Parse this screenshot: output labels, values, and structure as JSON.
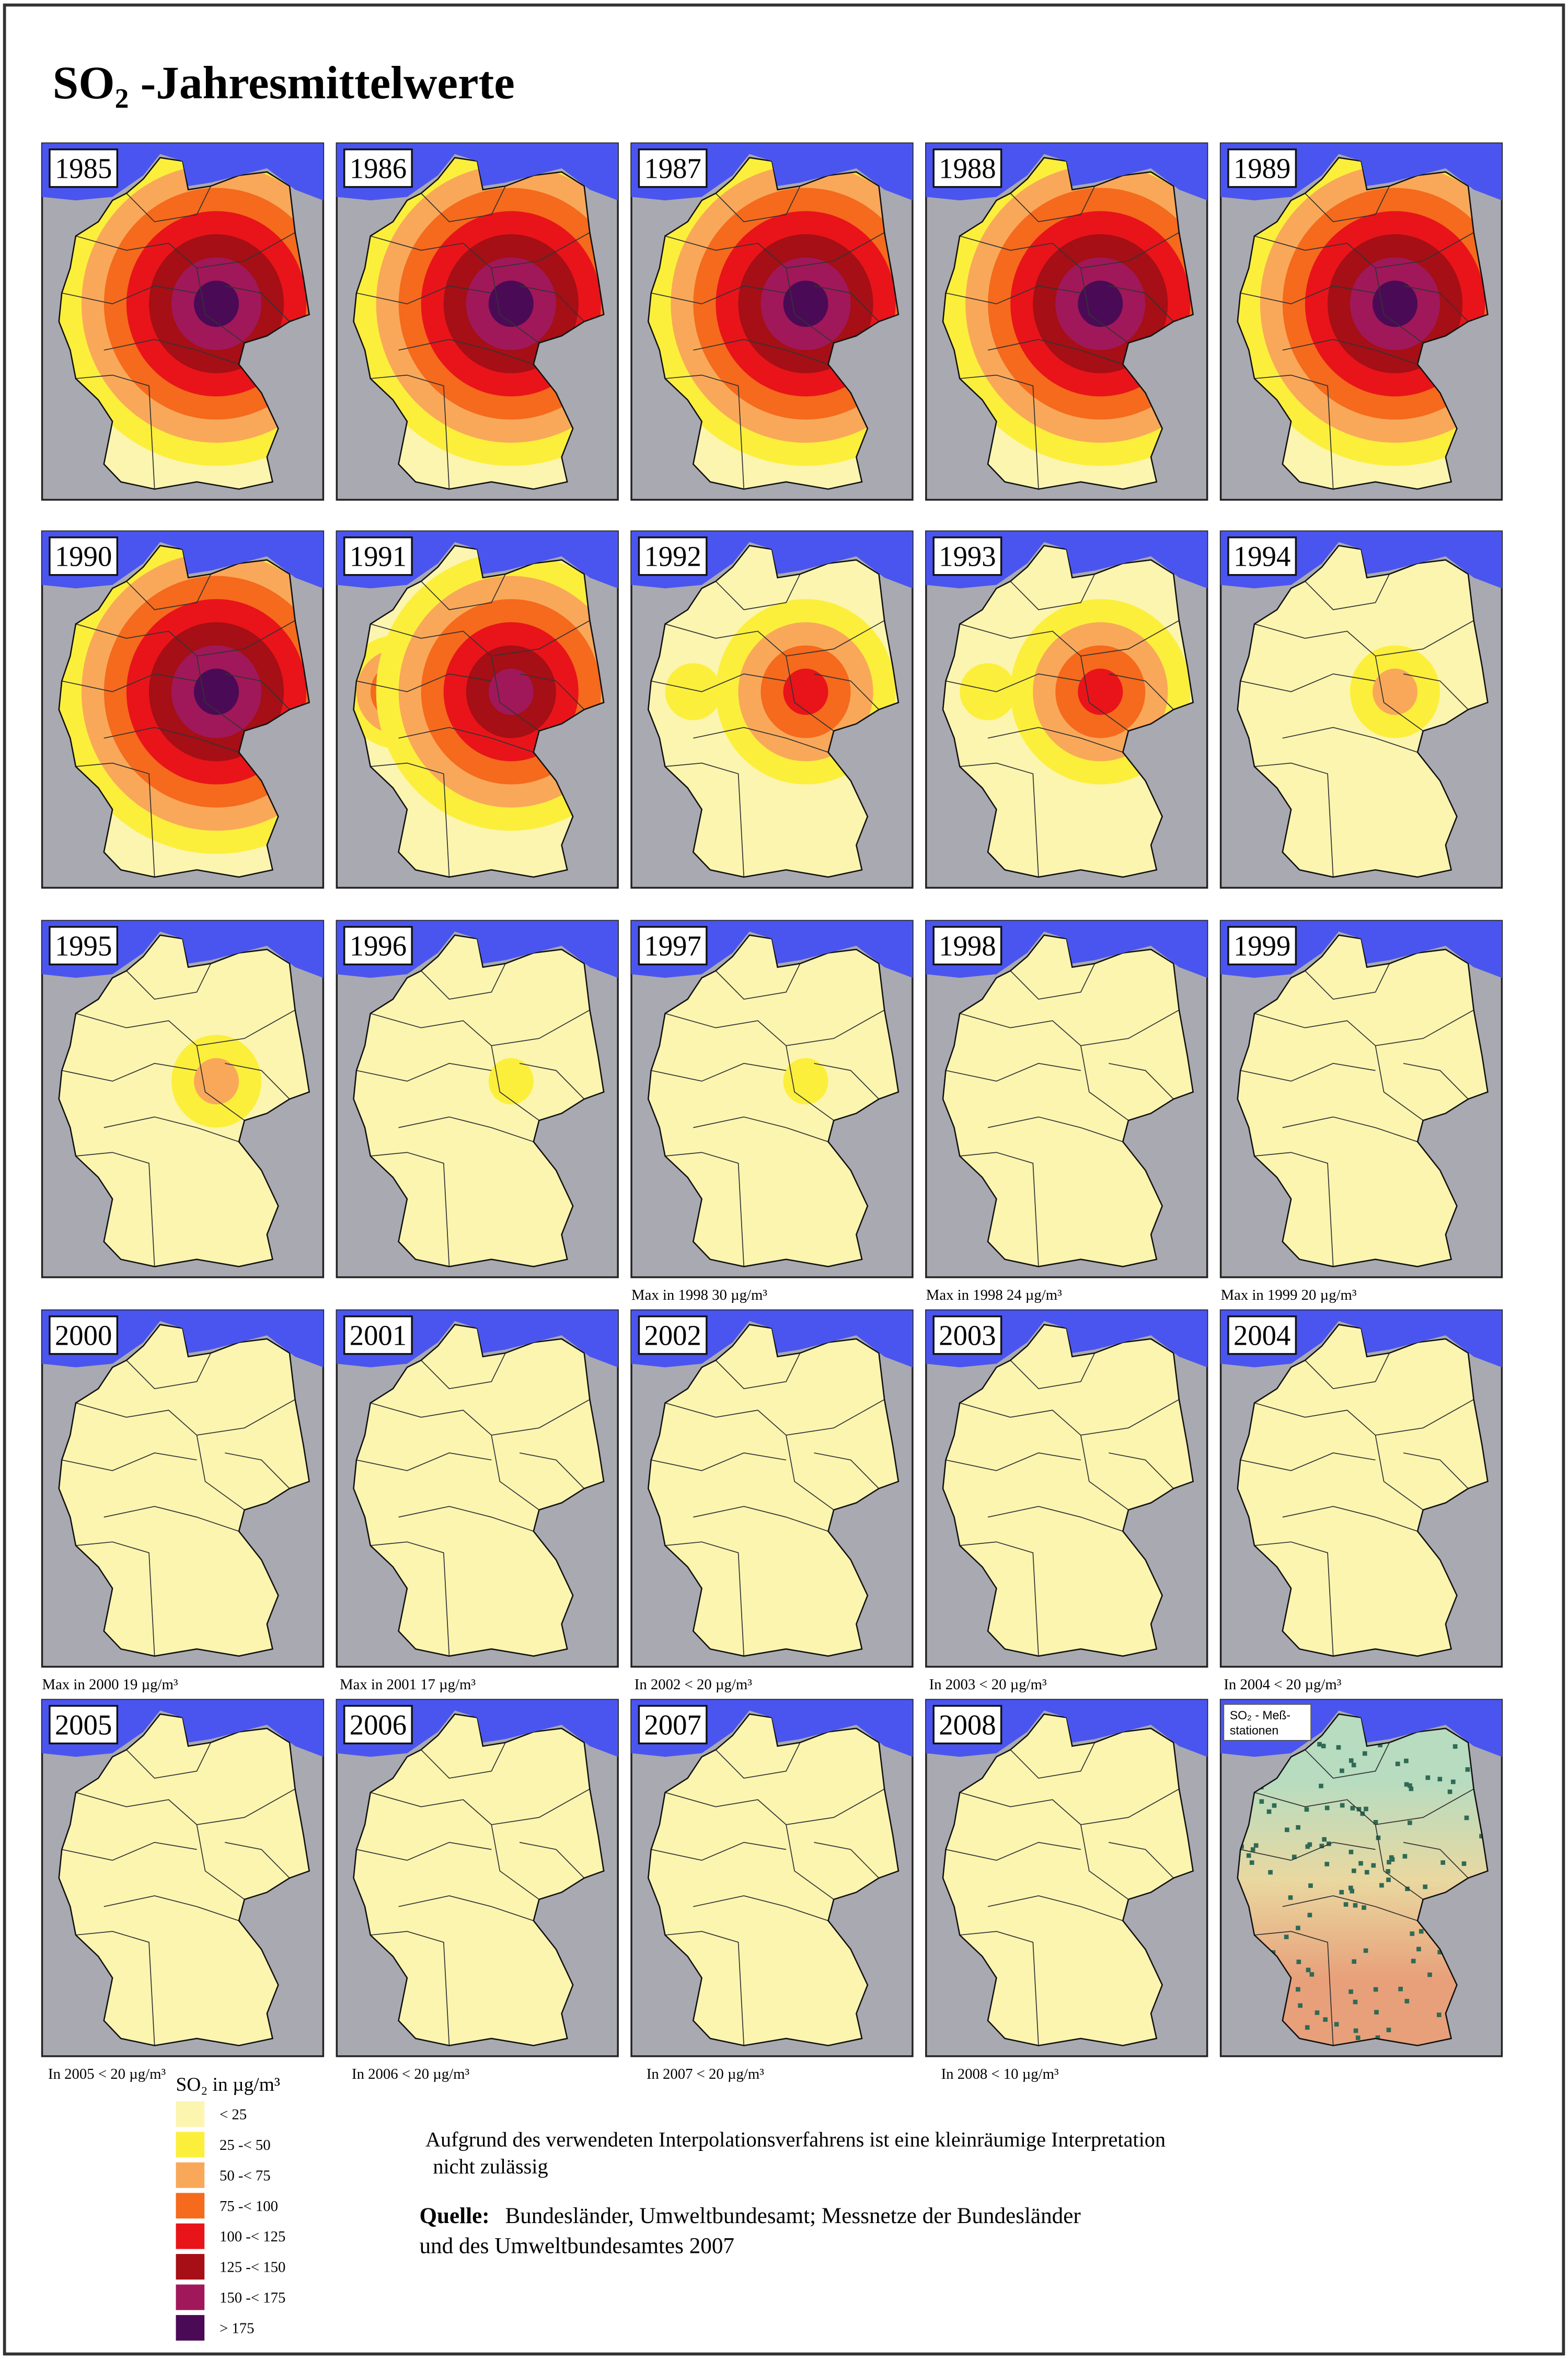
{
  "title": "SO₂ -Jahresmittelwerte",
  "panels": [
    {
      "year": "1985"
    },
    {
      "year": "1986"
    },
    {
      "year": "1987"
    },
    {
      "year": "1988"
    },
    {
      "year": "1989"
    },
    {
      "year": "1990"
    },
    {
      "year": "1991"
    },
    {
      "year": "1992"
    },
    {
      "year": "1993"
    },
    {
      "year": "1994"
    },
    {
      "year": "1995"
    },
    {
      "year": "1996"
    },
    {
      "year": "1997",
      "note": "Max in 1998  30 µg/m³"
    },
    {
      "year": "1998",
      "note": "Max in 1998  24 µg/m³"
    },
    {
      "year": "1999",
      "note": "Max in 1999 20 µg/m³"
    },
    {
      "year": "2000",
      "note": "Max in 2000  19 µg/m³"
    },
    {
      "year": "2001",
      "note": "Max in 2001 17 µg/m³"
    },
    {
      "year": "2002",
      "note": "In 2002 < 20 µg/m³"
    },
    {
      "year": "2003",
      "note": "In 2003 < 20 µg/m³"
    },
    {
      "year": "2004",
      "note": "In 2004 < 20 µg/m³"
    },
    {
      "year": "2005",
      "note": "In 2005 < 20 µg/m³"
    },
    {
      "year": "2006",
      "note": "In 2006 < 20 µg/m³"
    },
    {
      "year": "2007",
      "note": "In 2007 < 20 µg/m³"
    },
    {
      "year": "2008",
      "note": "In 2008 < 10 µg/m³"
    },
    {
      "label": [
        "SO₂ - Meß-",
        "stationen"
      ]
    }
  ],
  "legend": {
    "title": "SO₂ in µg/m³",
    "items": [
      {
        "label": "< 25",
        "color": "#fbf5b0"
      },
      {
        "label": "25 -< 50",
        "color": "#fcef3c"
      },
      {
        "label": "50 -< 75",
        "color": "#f9a85a"
      },
      {
        "label": "75 -< 100",
        "color": "#f56a1c"
      },
      {
        "label": "100 -< 125",
        "color": "#e8141a"
      },
      {
        "label": "125 -< 150",
        "color": "#a50f15"
      },
      {
        "label": "150 -< 175",
        "color": "#a0185a"
      },
      {
        "label": "> 175",
        "color": "#4b0a55"
      }
    ]
  },
  "note": [
    "Aufgrund des verwendeten Interpolationsverfahrens ist eine kleinräumige Interpretation",
    "nicht zulässig"
  ],
  "source": {
    "label": "Quelle:",
    "lines": [
      "Bundesländer, Umweltbundesamt; Messnetze der Bundesländer",
      "und des Umweltbundesamtes 2007"
    ]
  }
}
